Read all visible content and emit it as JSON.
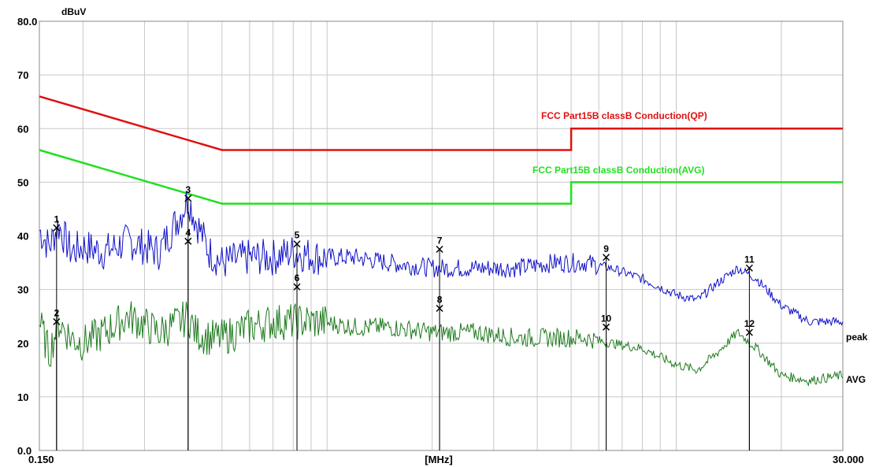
{
  "chart_data": {
    "type": "line",
    "ylabel": "dBuV",
    "xlabel": "[MHz]",
    "x_scale": "log",
    "xlim": [
      0.15,
      30.0
    ],
    "ylim": [
      0,
      80
    ],
    "x_tick_labels": [
      "0.150",
      "[MHz]",
      "30.000"
    ],
    "y_tick_labels": [
      "0.0",
      "10",
      "20",
      "30",
      "40",
      "50",
      "60",
      "70",
      "80.0"
    ],
    "grid": true,
    "limit_lines": [
      {
        "name": "FCC  Part15B classB Conduction(QP)",
        "color": "#e01010",
        "points": [
          [
            0.15,
            66
          ],
          [
            0.5,
            56
          ],
          [
            5.0,
            56
          ],
          [
            5.0,
            60
          ],
          [
            30.0,
            60
          ]
        ]
      },
      {
        "name": "FCC  Part15B classB Conduction(AVG)",
        "color": "#20e020",
        "points": [
          [
            0.15,
            56
          ],
          [
            0.5,
            46
          ],
          [
            5.0,
            46
          ],
          [
            5.0,
            50
          ],
          [
            30.0,
            50
          ]
        ]
      }
    ],
    "series": [
      {
        "name": "peak",
        "color": "#1010c8",
        "points": [
          [
            0.15,
            41
          ],
          [
            0.16,
            38
          ],
          [
            0.17,
            42
          ],
          [
            0.185,
            37
          ],
          [
            0.2,
            38
          ],
          [
            0.23,
            37
          ],
          [
            0.27,
            39
          ],
          [
            0.33,
            37
          ],
          [
            0.38,
            44
          ],
          [
            0.4,
            47
          ],
          [
            0.42,
            43
          ],
          [
            0.46,
            37
          ],
          [
            0.5,
            35
          ],
          [
            0.6,
            36
          ],
          [
            0.7,
            36
          ],
          [
            0.8,
            37
          ],
          [
            0.95,
            36
          ],
          [
            1.2,
            36
          ],
          [
            1.5,
            35
          ],
          [
            2.0,
            34
          ],
          [
            2.7,
            34
          ],
          [
            3.5,
            34
          ],
          [
            4.5,
            35
          ],
          [
            5.5,
            35
          ],
          [
            6.5,
            34
          ],
          [
            8.0,
            32
          ],
          [
            10.0,
            29
          ],
          [
            11.5,
            28
          ],
          [
            13.0,
            31
          ],
          [
            15.0,
            34
          ],
          [
            17.0,
            32
          ],
          [
            20.0,
            27
          ],
          [
            24.0,
            24
          ],
          [
            30.0,
            24
          ]
        ]
      },
      {
        "name": "AVG",
        "color": "#1e7a1e",
        "points": [
          [
            0.15,
            24
          ],
          [
            0.16,
            18
          ],
          [
            0.17,
            24
          ],
          [
            0.185,
            21
          ],
          [
            0.2,
            20
          ],
          [
            0.23,
            22
          ],
          [
            0.27,
            25
          ],
          [
            0.33,
            22
          ],
          [
            0.38,
            24
          ],
          [
            0.4,
            25
          ],
          [
            0.42,
            22
          ],
          [
            0.46,
            21
          ],
          [
            0.5,
            21
          ],
          [
            0.6,
            23
          ],
          [
            0.7,
            24
          ],
          [
            0.8,
            24
          ],
          [
            0.95,
            24
          ],
          [
            1.2,
            23
          ],
          [
            1.5,
            23
          ],
          [
            2.0,
            22
          ],
          [
            2.7,
            22
          ],
          [
            3.5,
            21
          ],
          [
            4.5,
            21
          ],
          [
            5.5,
            21
          ],
          [
            6.5,
            20
          ],
          [
            8.0,
            19
          ],
          [
            10.0,
            16
          ],
          [
            11.5,
            15
          ],
          [
            13.0,
            18
          ],
          [
            15.0,
            22
          ],
          [
            17.0,
            19
          ],
          [
            20.0,
            14
          ],
          [
            24.0,
            13
          ],
          [
            30.0,
            14
          ]
        ]
      }
    ],
    "markers": [
      {
        "label": "1",
        "x": 0.168,
        "y": 41.5
      },
      {
        "label": "2",
        "x": 0.168,
        "y": 24
      },
      {
        "label": "3",
        "x": 0.4,
        "y": 47
      },
      {
        "label": "4",
        "x": 0.4,
        "y": 39
      },
      {
        "label": "5",
        "x": 0.82,
        "y": 38.5
      },
      {
        "label": "6",
        "x": 0.82,
        "y": 30.5
      },
      {
        "label": "7",
        "x": 2.1,
        "y": 37.5
      },
      {
        "label": "8",
        "x": 2.1,
        "y": 26.5
      },
      {
        "label": "9",
        "x": 6.3,
        "y": 36
      },
      {
        "label": "10",
        "x": 6.3,
        "y": 23
      },
      {
        "label": "11",
        "x": 16.2,
        "y": 34
      },
      {
        "label": "12",
        "x": 16.2,
        "y": 22
      }
    ]
  }
}
